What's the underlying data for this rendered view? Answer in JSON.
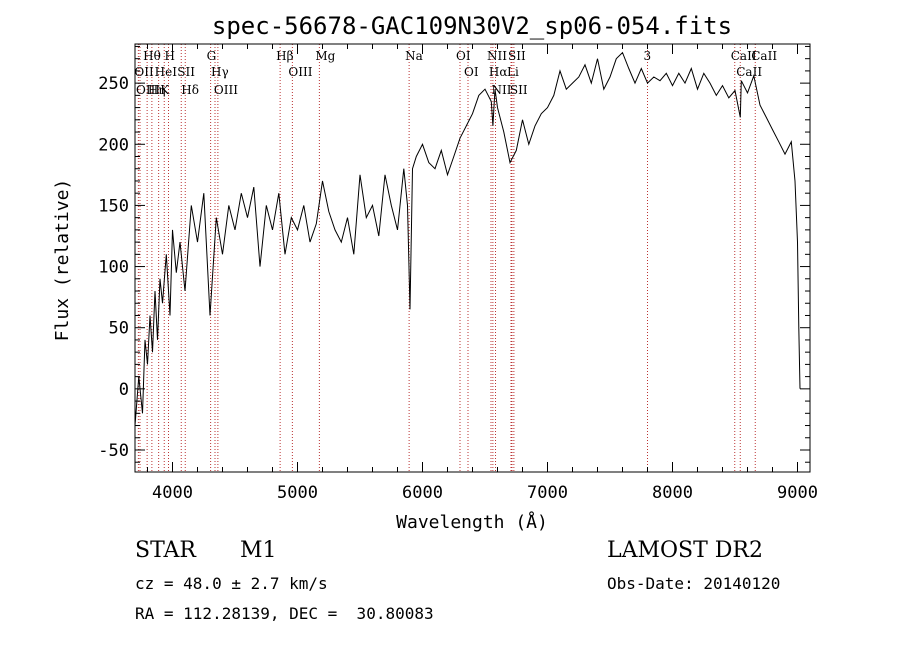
{
  "chart_data": {
    "type": "line",
    "title": "spec-56678-GAC109N30V2_sp06-054.fits",
    "xlabel": "Wavelength (Å)",
    "ylabel": "Flux (relative)",
    "xlim": [
      3700,
      9100
    ],
    "ylim": [
      -68,
      282
    ],
    "x_ticks": [
      4000,
      5000,
      6000,
      7000,
      8000,
      9000
    ],
    "y_ticks": [
      -50,
      0,
      50,
      100,
      150,
      200,
      250
    ],
    "grid": false,
    "series": [
      {
        "x": [
          3700,
          3730,
          3760,
          3780,
          3800,
          3820,
          3840,
          3860,
          3880,
          3900,
          3920,
          3950,
          3980,
          4000,
          4030,
          4060,
          4100,
          4150,
          4200,
          4250,
          4300,
          4350,
          4400,
          4450,
          4500,
          4550,
          4600,
          4650,
          4700,
          4750,
          4800,
          4850,
          4900,
          4950,
          5000,
          5050,
          5100,
          5150,
          5200,
          5250,
          5300,
          5350,
          5400,
          5450,
          5500,
          5550,
          5600,
          5650,
          5700,
          5750,
          5800,
          5850,
          5880,
          5900,
          5920,
          5950,
          6000,
          6050,
          6100,
          6150,
          6200,
          6250,
          6300,
          6350,
          6400,
          6450,
          6500,
          6550,
          6563,
          6580,
          6600,
          6650,
          6700,
          6750,
          6800,
          6850,
          6900,
          6950,
          7000,
          7050,
          7100,
          7150,
          7200,
          7250,
          7300,
          7350,
          7400,
          7450,
          7500,
          7550,
          7600,
          7650,
          7700,
          7750,
          7800,
          7850,
          7900,
          7950,
          8000,
          8050,
          8100,
          8150,
          8200,
          8250,
          8300,
          8350,
          8400,
          8450,
          8500,
          8542,
          8550,
          8600,
          8650,
          8700,
          8750,
          8800,
          8850,
          8900,
          8950,
          8980,
          9000,
          9010,
          9020
        ],
        "y": [
          -30,
          10,
          -20,
          40,
          20,
          60,
          30,
          80,
          40,
          90,
          70,
          110,
          60,
          130,
          95,
          120,
          80,
          150,
          120,
          160,
          60,
          140,
          110,
          150,
          130,
          160,
          140,
          165,
          100,
          150,
          130,
          160,
          110,
          140,
          130,
          150,
          120,
          135,
          170,
          145,
          130,
          120,
          140,
          110,
          175,
          140,
          150,
          125,
          175,
          150,
          130,
          180,
          150,
          65,
          180,
          190,
          200,
          185,
          180,
          195,
          175,
          190,
          205,
          215,
          225,
          240,
          245,
          235,
          215,
          245,
          230,
          210,
          185,
          195,
          220,
          200,
          215,
          225,
          230,
          240,
          260,
          245,
          250,
          255,
          265,
          250,
          270,
          245,
          255,
          270,
          275,
          262,
          250,
          262,
          250,
          255,
          252,
          258,
          248,
          258,
          250,
          262,
          245,
          258,
          250,
          240,
          248,
          238,
          244,
          222,
          252,
          242,
          256,
          232,
          222,
          212,
          202,
          192,
          202,
          170,
          120,
          50,
          0
        ]
      }
    ],
    "line_markers": [
      {
        "label": "Hθ",
        "x": 3797
      },
      {
        "label": "OII",
        "x": 3727
      },
      {
        "label": "OIII",
        "x": 3740
      },
      {
        "label": "Hη",
        "x": 3835
      },
      {
        "label": "HeI",
        "x": 3889
      },
      {
        "label": "K",
        "x": 3934
      },
      {
        "label": "H",
        "x": 3968
      },
      {
        "label": "SII",
        "x": 4070
      },
      {
        "label": "Hδ",
        "x": 4102
      },
      {
        "label": "G",
        "x": 4305
      },
      {
        "label": "Hγ",
        "x": 4340
      },
      {
        "label": "OIII",
        "x": 4363
      },
      {
        "label": "Hβ",
        "x": 4861
      },
      {
        "label": "OIII",
        "x": 4959
      },
      {
        "label": "Mg",
        "x": 5175
      },
      {
        "label": "Na",
        "x": 5893
      },
      {
        "label": "OI",
        "x": 6300
      },
      {
        "label": "OI",
        "x": 6364
      },
      {
        "label": "NII",
        "x": 6548
      },
      {
        "label": "Hα",
        "x": 6563
      },
      {
        "label": "NII",
        "x": 6584
      },
      {
        "label": "SII",
        "x": 6716
      },
      {
        "label": "Li",
        "x": 6708
      },
      {
        "label": "SII",
        "x": 6731
      },
      {
        "label": "3",
        "x": 7800
      },
      {
        "label": "CaII",
        "x": 8498
      },
      {
        "label": "CaII",
        "x": 8542
      },
      {
        "label": "CaII",
        "x": 8662
      }
    ]
  },
  "footer": {
    "class_label": "STAR",
    "subclass": "M1",
    "survey": "LAMOST DR2",
    "cz": "cz = 48.0 ± 2.7 km/s",
    "obs_date": "Obs-Date: 20140120",
    "coords": "RA = 112.28139, DEC =  30.80083"
  }
}
